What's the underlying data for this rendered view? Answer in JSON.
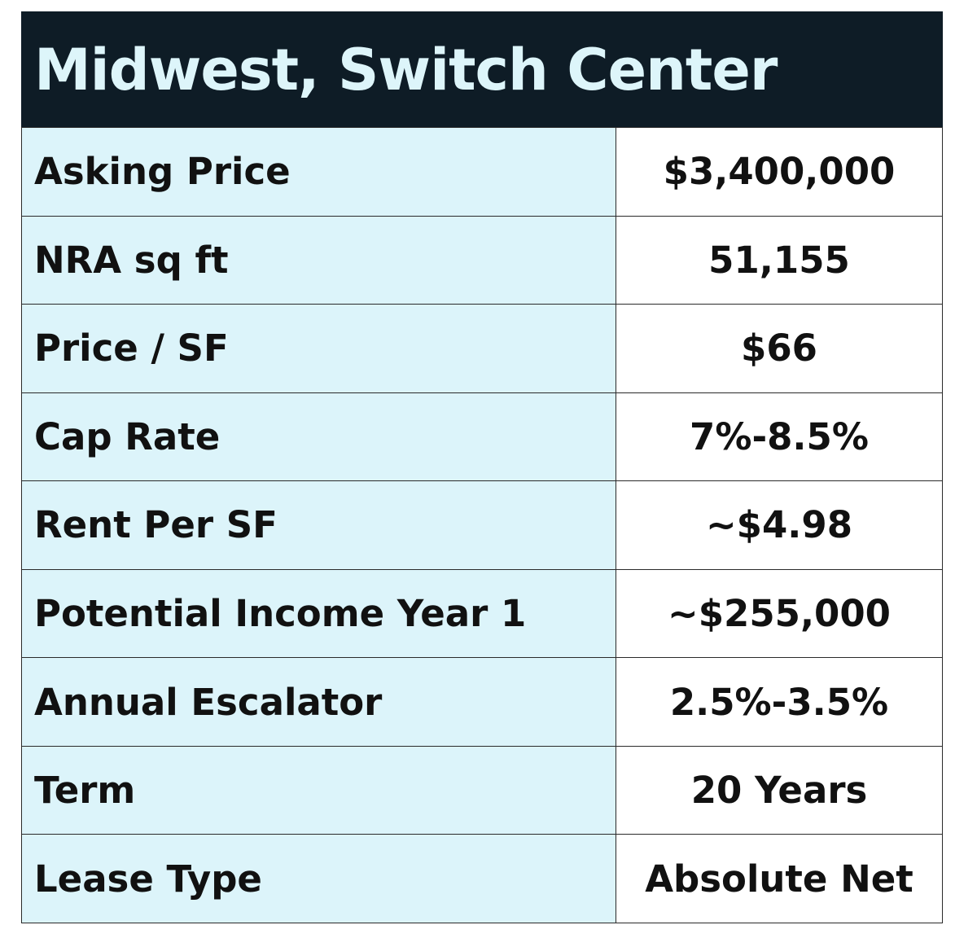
{
  "title": "Midwest, Switch Center",
  "rows": [
    {
      "label": "Asking Price",
      "value": "$3,400,000"
    },
    {
      "label": "NRA sq ft",
      "value": "51,155"
    },
    {
      "label": "Price / SF",
      "value": "$66"
    },
    {
      "label": "Cap Rate",
      "value": "7%-8.5%"
    },
    {
      "label": "Rent Per SF",
      "value": "~$4.98"
    },
    {
      "label": "Potential Income Year 1",
      "value": "~$255,000"
    },
    {
      "label": "Annual Escalator",
      "value": "2.5%-3.5%"
    },
    {
      "label": "Term",
      "value": "20 Years"
    },
    {
      "label": "Lease Type",
      "value": "Absolute Net"
    }
  ],
  "colors": {
    "header_bg": "#0e1c26",
    "header_text": "#ddf5fa",
    "label_bg": "#dcf4fa",
    "value_bg": "#ffffff",
    "border": "#2a2a2a",
    "text": "#111111"
  }
}
